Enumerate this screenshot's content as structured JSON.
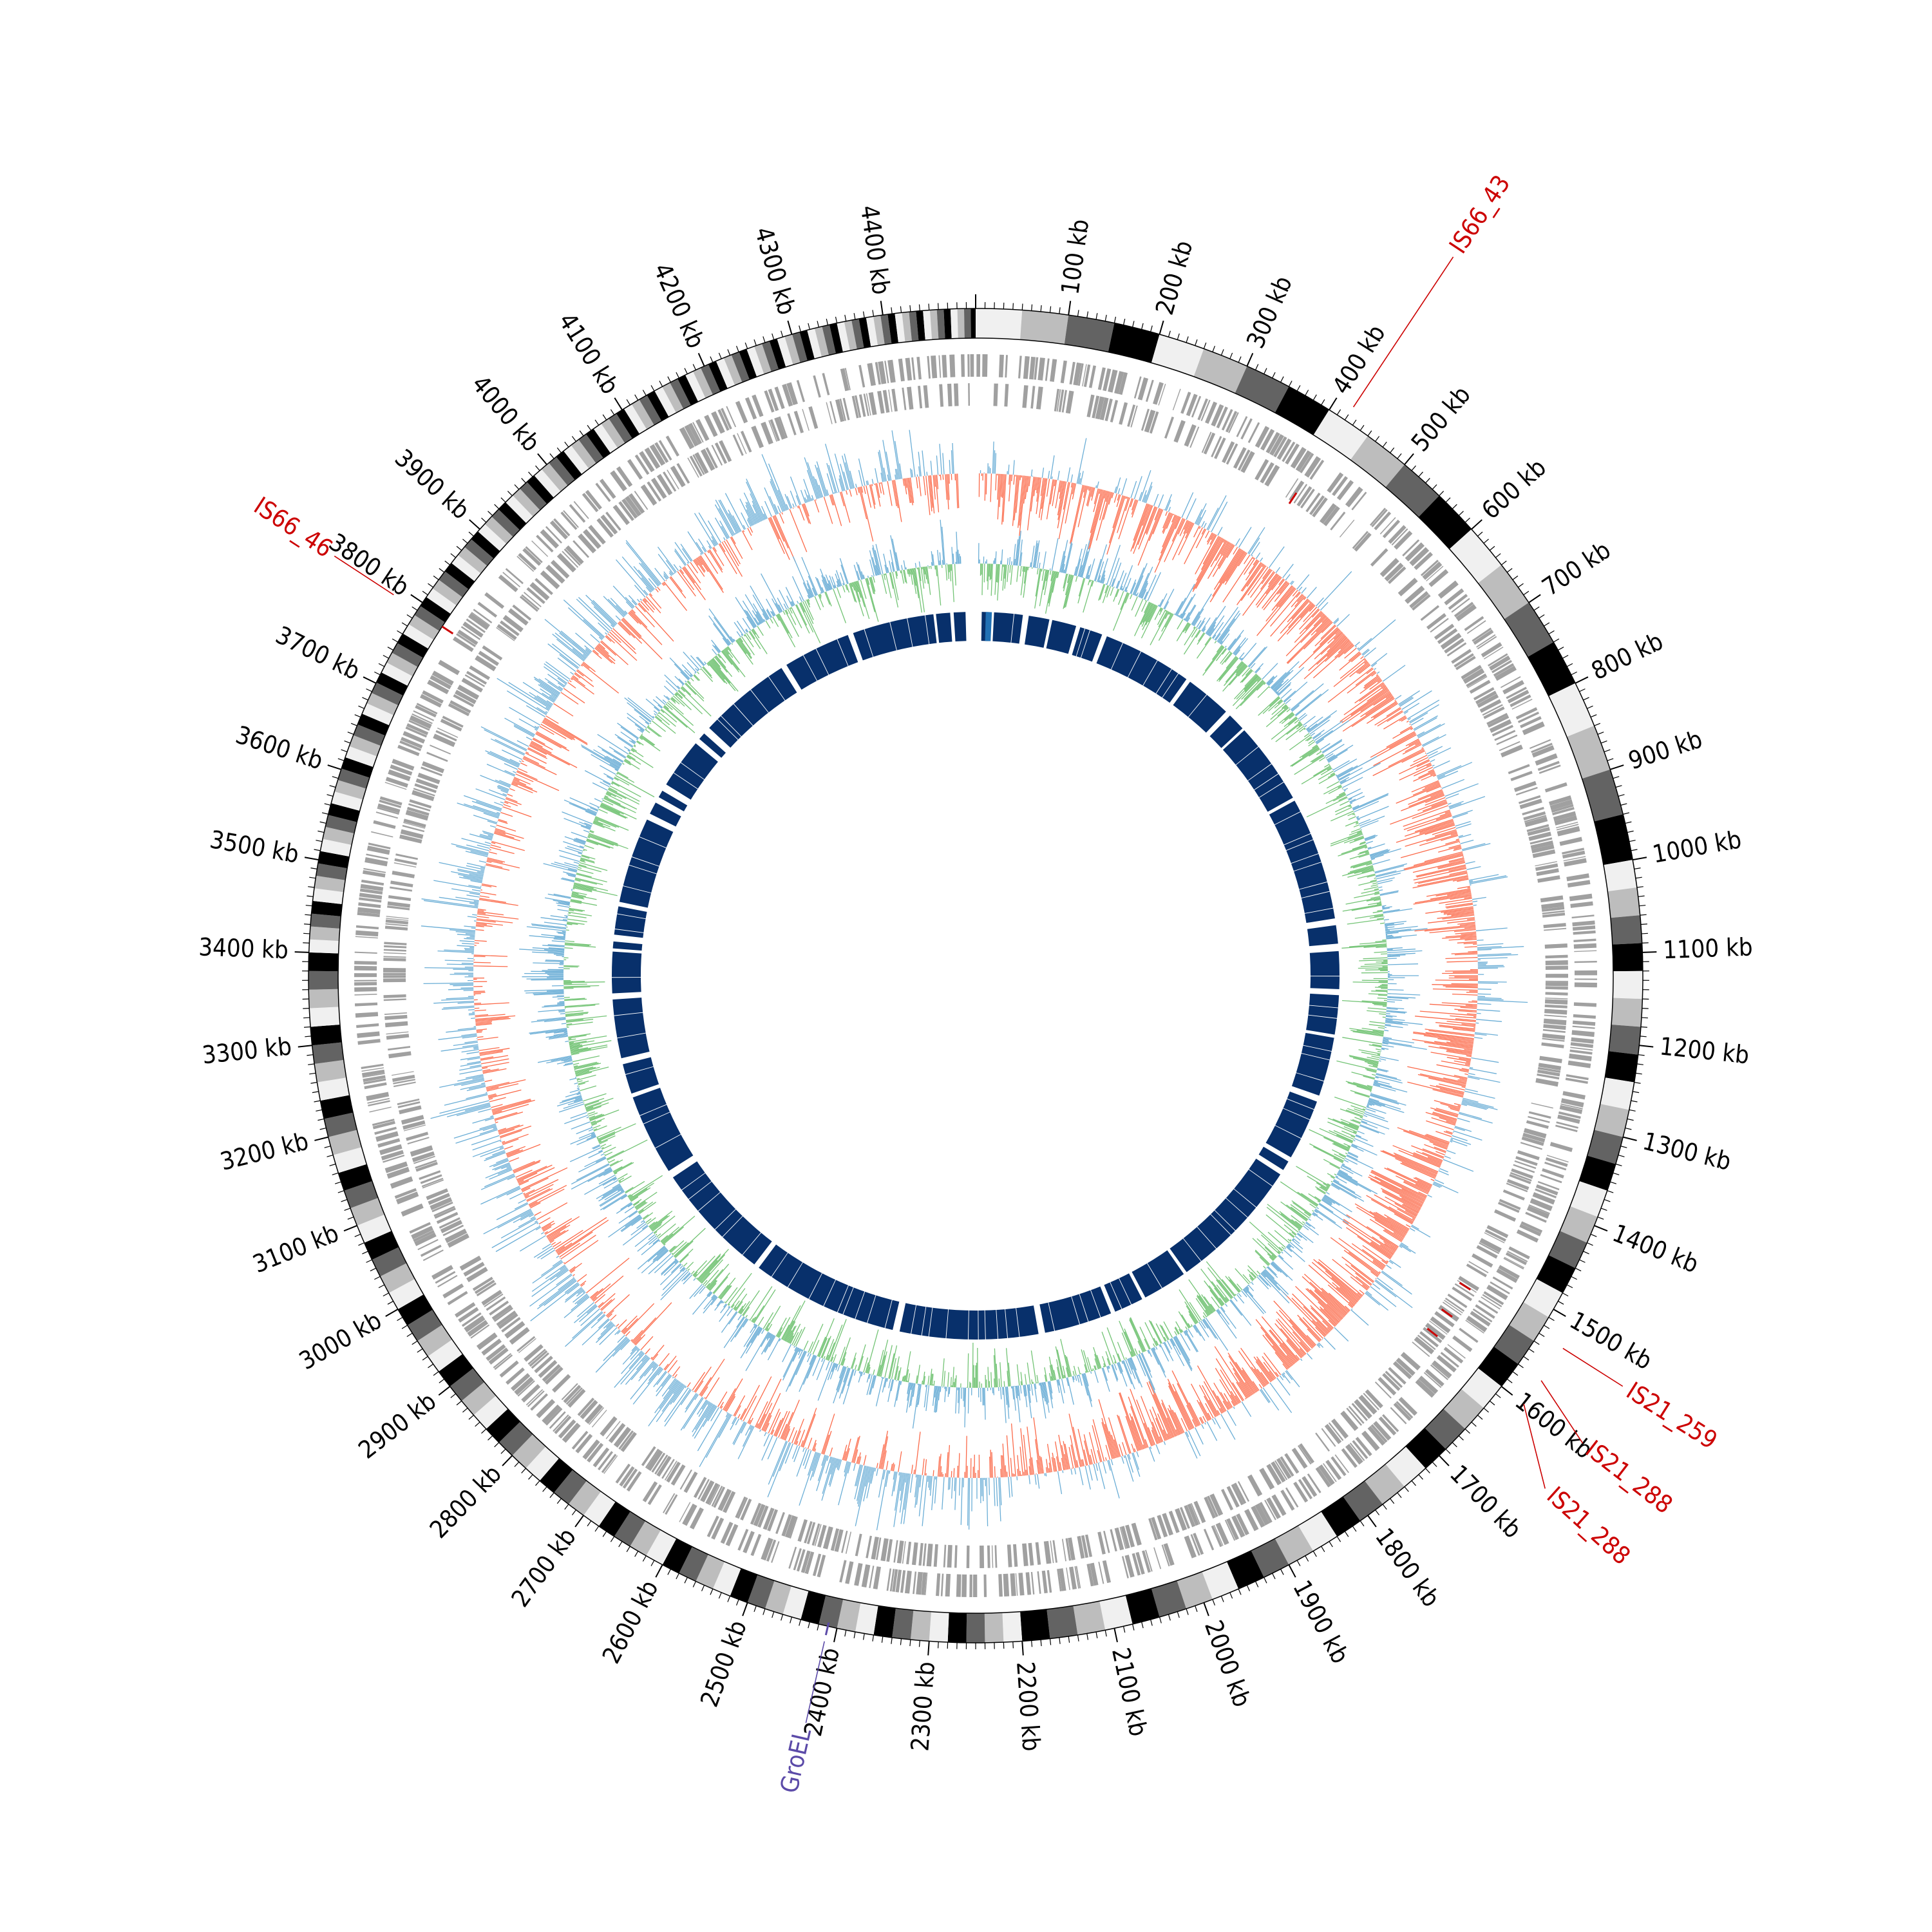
{
  "genome": {
    "total_kb": 4500,
    "tick_labels": [
      "100 kb",
      "200 kb",
      "300 kb",
      "400 kb",
      "500 kb",
      "600 kb",
      "700 kb",
      "800 kb",
      "900 kb",
      "1000 kb",
      "1100 kb",
      "1200 kb",
      "1300 kb",
      "1400 kb",
      "1500 kb",
      "1600 kb",
      "1700 kb",
      "1800 kb",
      "1900 kb",
      "2000 kb",
      "2100 kb",
      "2200 kb",
      "2300 kb",
      "2400 kb",
      "2500 kb",
      "2600 kb",
      "2700 kb",
      "2800 kb",
      "2900 kb",
      "3000 kb",
      "3100 kb",
      "3200 kb",
      "3300 kb",
      "3400 kb",
      "3500 kb",
      "3600 kb",
      "3700 kb",
      "3800 kb",
      "3900 kb",
      "4000 kb",
      "4100 kb",
      "4200 kb",
      "4300 kb",
      "4400 kb"
    ],
    "tick_values_kb": [
      100,
      200,
      300,
      400,
      500,
      600,
      700,
      800,
      900,
      1000,
      1100,
      1200,
      1300,
      1400,
      1500,
      1600,
      1700,
      1800,
      1900,
      2000,
      2100,
      2200,
      2300,
      2400,
      2500,
      2600,
      2700,
      2800,
      2900,
      3000,
      3100,
      3200,
      3300,
      3400,
      3500,
      3600,
      3700,
      3800,
      3900,
      4000,
      4100,
      4200,
      4300,
      4400
    ]
  },
  "annotations": [
    {
      "label": "IS66_43",
      "position_kb": 420,
      "color": "#cc0000"
    },
    {
      "label": "IS66_46",
      "position_kb": 3790,
      "color": "#cc0000"
    },
    {
      "label": "IS21_259",
      "position_kb": 1530,
      "color": "#cc0000"
    },
    {
      "label": "IS21_288",
      "position_kb": 1570,
      "color": "#cc0000"
    },
    {
      "label": "IS21_288",
      "position_kb": 1600,
      "color": "#cc0000"
    },
    {
      "label": "GroEL",
      "position_kb": 2410,
      "color": "#5b4aa8"
    }
  ],
  "colors": {
    "ideogram_shades": [
      "#f0f0f0",
      "#bdbdbd",
      "#636363",
      "#000000"
    ],
    "gene_track": "#a0a0a0",
    "gc_skew_positive": "#6baed6",
    "gc_skew_negative": "#fb6a4a",
    "gc_content_positive": "#74c476",
    "gc_content_negative": "#6baed6",
    "synteny_blocks": "#08306b",
    "synteny_highlight": "#2171b5"
  }
}
